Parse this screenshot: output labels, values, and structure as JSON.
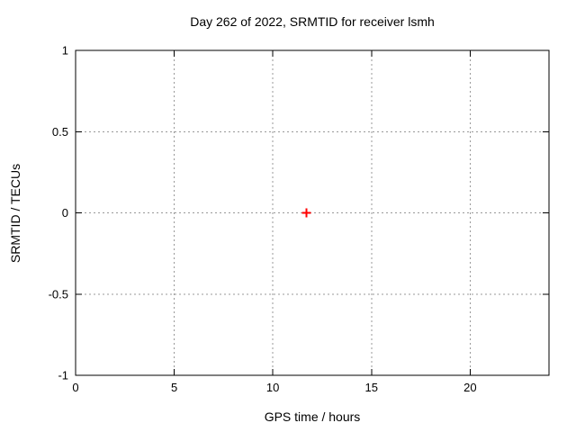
{
  "chart_data": {
    "type": "scatter",
    "title": "Day 262 of 2022, SRMTID for receiver lsmh",
    "xlabel": "GPS time / hours",
    "ylabel": "SRMTID / TECUs",
    "xlim": [
      0,
      24
    ],
    "ylim": [
      -1,
      1
    ],
    "xticks": [
      0,
      5,
      10,
      15,
      20
    ],
    "yticks": [
      -1,
      -0.5,
      0,
      0.5,
      1
    ],
    "grid": true,
    "legend_position": "none",
    "series": [
      {
        "name": "SRMTID",
        "marker": "plus",
        "color": "#ff0000",
        "points": [
          {
            "x": 11.7,
            "y": 0.0
          }
        ]
      }
    ],
    "colors": {
      "border": "#000000",
      "grid": "#999999",
      "background": "#ffffff",
      "text": "#000000"
    }
  }
}
